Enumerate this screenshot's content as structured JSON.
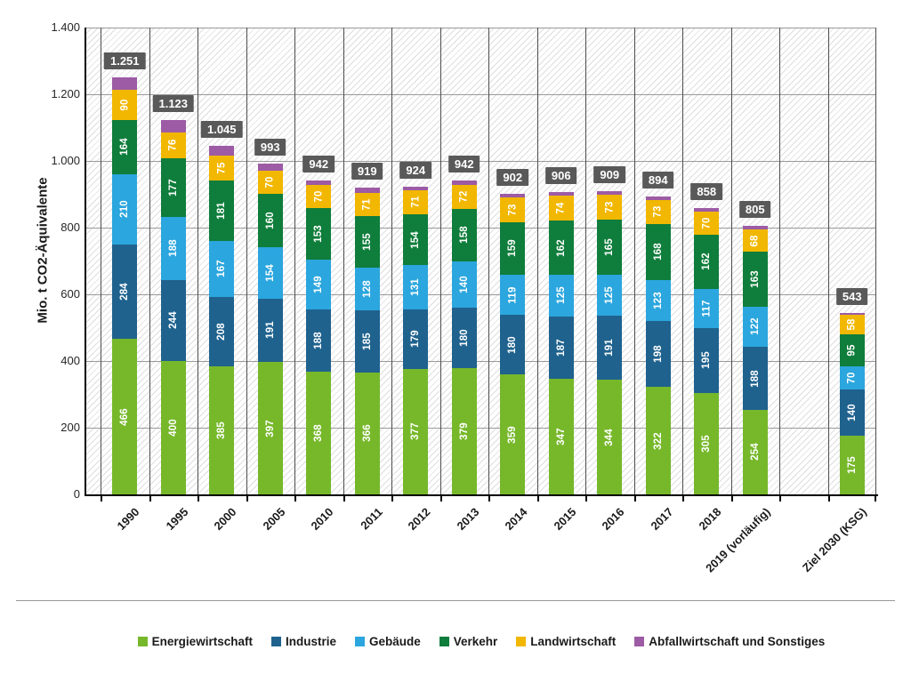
{
  "chart_data": {
    "type": "bar",
    "stacked": true,
    "title": "",
    "ylabel": "Mio. t CO2-Äquivalente",
    "xlabel": "",
    "ylim": [
      0,
      1400
    ],
    "ytick_step": 200,
    "ytick_labels": [
      "0",
      "200",
      "400",
      "600",
      "800",
      "1.000",
      "1.200",
      "1.400"
    ],
    "grid": true,
    "legend_position": "bottom",
    "categories": [
      "1990",
      "1995",
      "2000",
      "2005",
      "2010",
      "2011",
      "2012",
      "2013",
      "2014",
      "2015",
      "2016",
      "2017",
      "2018",
      "2019 (vorläufig)",
      "Ziel 2030 (KSG)"
    ],
    "gap_before_last": true,
    "totals": [
      1251,
      1123,
      1045,
      993,
      942,
      919,
      924,
      942,
      902,
      906,
      909,
      894,
      858,
      805,
      543
    ],
    "total_labels": [
      "1.251",
      "1.123",
      "1.045",
      "993",
      "942",
      "919",
      "924",
      "942",
      "902",
      "906",
      "909",
      "894",
      "858",
      "805",
      "543"
    ],
    "series": [
      {
        "name": "Energiewirtschaft",
        "color": "#76B82A",
        "show_labels": true,
        "values": [
          466,
          400,
          385,
          397,
          368,
          366,
          377,
          379,
          359,
          347,
          344,
          322,
          305,
          254,
          175
        ]
      },
      {
        "name": "Industrie",
        "color": "#1F628E",
        "show_labels": true,
        "values": [
          284,
          244,
          208,
          191,
          188,
          185,
          179,
          180,
          180,
          187,
          191,
          198,
          195,
          188,
          140
        ]
      },
      {
        "name": "Gebäude",
        "color": "#2BA6DE",
        "show_labels": true,
        "values": [
          210,
          188,
          167,
          154,
          149,
          128,
          131,
          140,
          119,
          125,
          125,
          123,
          117,
          122,
          70
        ]
      },
      {
        "name": "Verkehr",
        "color": "#0F7D3B",
        "show_labels": true,
        "values": [
          164,
          177,
          181,
          160,
          153,
          155,
          154,
          158,
          159,
          162,
          165,
          168,
          162,
          163,
          95
        ]
      },
      {
        "name": "Landwirtschaft",
        "color": "#F2B700",
        "show_labels": true,
        "values": [
          90,
          76,
          75,
          70,
          70,
          71,
          71,
          72,
          73,
          74,
          73,
          73,
          70,
          68,
          58
        ]
      },
      {
        "name": "Abfallwirtschaft und Sonstiges",
        "color": "#9C5BA4",
        "show_labels": false,
        "values": [
          37,
          38,
          29,
          21,
          14,
          14,
          12,
          13,
          12,
          11,
          11,
          10,
          9,
          10,
          5
        ]
      }
    ]
  }
}
